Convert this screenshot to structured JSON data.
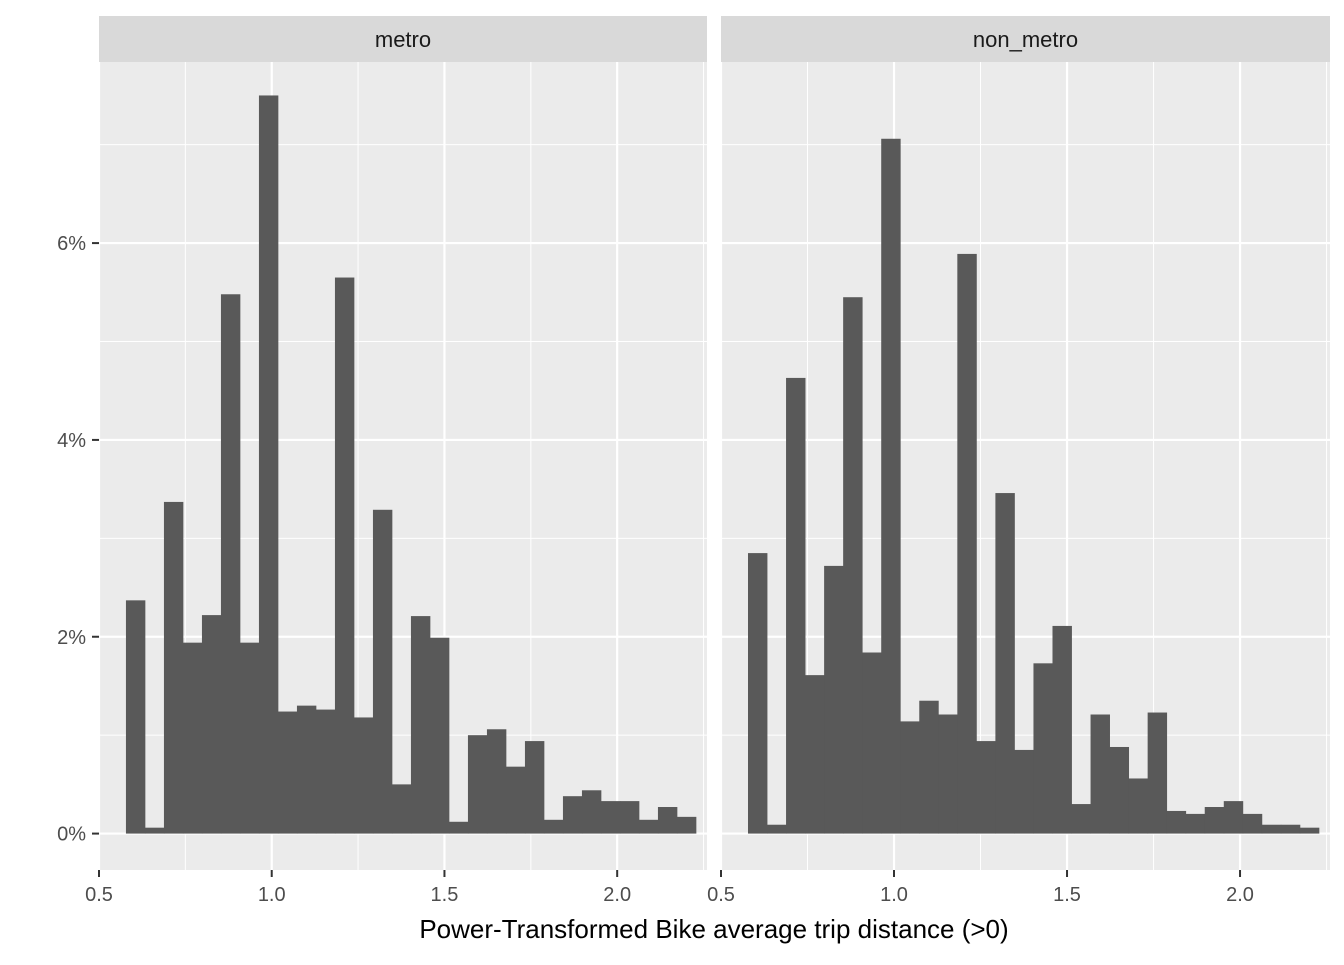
{
  "chart_data": {
    "type": "bar",
    "xlabel": "Power-Transformed Bike average trip distance (>0)",
    "ylabel": "",
    "xlim": [
      0.5,
      2.26
    ],
    "ylim": [
      -0.0037,
      0.0784
    ],
    "x_ticks": [
      0.5,
      1.0,
      1.5,
      2.0
    ],
    "x_tick_labels": [
      "0.5",
      "1.0",
      "1.5",
      "2.0"
    ],
    "y_ticks": [
      0,
      0.02,
      0.04,
      0.06
    ],
    "y_tick_labels": [
      "0%",
      "2%",
      "4%",
      "6%"
    ],
    "grid": true,
    "facet_label_position": "top",
    "colors": {
      "bar": "#595959",
      "panel_bg": "#ebebeb",
      "strip_bg": "#d9d9d9",
      "grid": "#ffffff"
    },
    "facets": [
      {
        "name": "metro",
        "bins": [
          {
            "x0": 0.578,
            "x1": 0.633,
            "value": 0.0237
          },
          {
            "x0": 0.633,
            "x1": 0.688,
            "value": 0.0006
          },
          {
            "x0": 0.688,
            "x1": 0.743,
            "value": 0.0337
          },
          {
            "x0": 0.743,
            "x1": 0.798,
            "value": 0.0194
          },
          {
            "x0": 0.798,
            "x1": 0.853,
            "value": 0.0222
          },
          {
            "x0": 0.853,
            "x1": 0.908,
            "value": 0.0548
          },
          {
            "x0": 0.908,
            "x1": 0.963,
            "value": 0.0194
          },
          {
            "x0": 0.963,
            "x1": 1.018,
            "value": 0.075
          },
          {
            "x0": 1.018,
            "x1": 1.073,
            "value": 0.0124
          },
          {
            "x0": 1.073,
            "x1": 1.128,
            "value": 0.013
          },
          {
            "x0": 1.128,
            "x1": 1.183,
            "value": 0.0126
          },
          {
            "x0": 1.183,
            "x1": 1.238,
            "value": 0.0565
          },
          {
            "x0": 1.238,
            "x1": 1.293,
            "value": 0.0118
          },
          {
            "x0": 1.293,
            "x1": 1.348,
            "value": 0.0329
          },
          {
            "x0": 1.348,
            "x1": 1.403,
            "value": 0.005
          },
          {
            "x0": 1.403,
            "x1": 1.458,
            "value": 0.0221
          },
          {
            "x0": 1.458,
            "x1": 1.513,
            "value": 0.0199
          },
          {
            "x0": 1.513,
            "x1": 1.568,
            "value": 0.0012
          },
          {
            "x0": 1.568,
            "x1": 1.623,
            "value": 0.01
          },
          {
            "x0": 1.623,
            "x1": 1.678,
            "value": 0.0106
          },
          {
            "x0": 1.678,
            "x1": 1.733,
            "value": 0.0068
          },
          {
            "x0": 1.733,
            "x1": 1.788,
            "value": 0.0094
          },
          {
            "x0": 1.788,
            "x1": 1.843,
            "value": 0.0014
          },
          {
            "x0": 1.843,
            "x1": 1.898,
            "value": 0.0038
          },
          {
            "x0": 1.898,
            "x1": 1.953,
            "value": 0.0044
          },
          {
            "x0": 1.953,
            "x1": 2.008,
            "value": 0.0033
          },
          {
            "x0": 2.008,
            "x1": 2.063,
            "value": 0.0033
          },
          {
            "x0": 2.063,
            "x1": 2.118,
            "value": 0.0014
          },
          {
            "x0": 2.118,
            "x1": 2.173,
            "value": 0.0027
          },
          {
            "x0": 2.173,
            "x1": 2.228,
            "value": 0.0017
          }
        ]
      },
      {
        "name": "non_metro",
        "bins": [
          {
            "x0": 0.578,
            "x1": 0.633,
            "value": 0.0285
          },
          {
            "x0": 0.633,
            "x1": 0.688,
            "value": 0.0009
          },
          {
            "x0": 0.688,
            "x1": 0.743,
            "value": 0.0463
          },
          {
            "x0": 0.743,
            "x1": 0.798,
            "value": 0.0161
          },
          {
            "x0": 0.798,
            "x1": 0.853,
            "value": 0.0272
          },
          {
            "x0": 0.853,
            "x1": 0.908,
            "value": 0.0545
          },
          {
            "x0": 0.908,
            "x1": 0.963,
            "value": 0.0184
          },
          {
            "x0": 0.963,
            "x1": 1.018,
            "value": 0.0706
          },
          {
            "x0": 1.018,
            "x1": 1.073,
            "value": 0.0114
          },
          {
            "x0": 1.073,
            "x1": 1.128,
            "value": 0.0135
          },
          {
            "x0": 1.128,
            "x1": 1.183,
            "value": 0.0121
          },
          {
            "x0": 1.183,
            "x1": 1.238,
            "value": 0.0589
          },
          {
            "x0": 1.238,
            "x1": 1.293,
            "value": 0.0094
          },
          {
            "x0": 1.293,
            "x1": 1.348,
            "value": 0.0346
          },
          {
            "x0": 1.348,
            "x1": 1.403,
            "value": 0.0085
          },
          {
            "x0": 1.403,
            "x1": 1.458,
            "value": 0.0173
          },
          {
            "x0": 1.458,
            "x1": 1.513,
            "value": 0.0211
          },
          {
            "x0": 1.513,
            "x1": 1.568,
            "value": 0.003
          },
          {
            "x0": 1.568,
            "x1": 1.623,
            "value": 0.0121
          },
          {
            "x0": 1.623,
            "x1": 1.678,
            "value": 0.0088
          },
          {
            "x0": 1.678,
            "x1": 1.733,
            "value": 0.0056
          },
          {
            "x0": 1.733,
            "x1": 1.788,
            "value": 0.0123
          },
          {
            "x0": 1.788,
            "x1": 1.843,
            "value": 0.0023
          },
          {
            "x0": 1.843,
            "x1": 1.898,
            "value": 0.002
          },
          {
            "x0": 1.898,
            "x1": 1.953,
            "value": 0.0027
          },
          {
            "x0": 1.953,
            "x1": 2.008,
            "value": 0.0033
          },
          {
            "x0": 2.008,
            "x1": 2.063,
            "value": 0.002
          },
          {
            "x0": 2.063,
            "x1": 2.118,
            "value": 0.0009
          },
          {
            "x0": 2.118,
            "x1": 2.173,
            "value": 0.0009
          },
          {
            "x0": 2.173,
            "x1": 2.228,
            "value": 0.0006
          }
        ]
      }
    ]
  }
}
